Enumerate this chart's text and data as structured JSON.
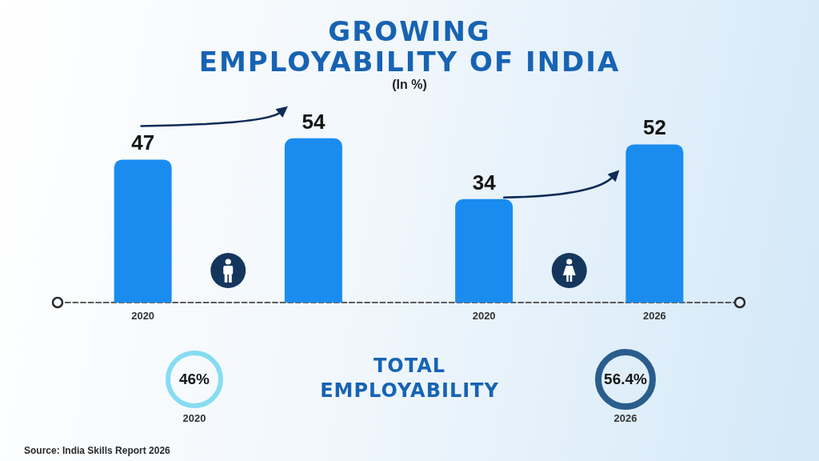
{
  "chart_data": {
    "type": "bar",
    "title": "GROWING\nEMPLOYABILITY OF INDIA",
    "subtitle": "(In %)",
    "categories": [
      "2020",
      null,
      "2020",
      "2026"
    ],
    "values": [
      47,
      54,
      34,
      52
    ],
    "color": "#1a8cf0",
    "data_labels": true,
    "annotations": [
      "TOTAL\nEMPLOYABILITY",
      "46%",
      "2020",
      "56.4%",
      "2026",
      "Source: India Skills Report 2026"
    ]
  }
}
